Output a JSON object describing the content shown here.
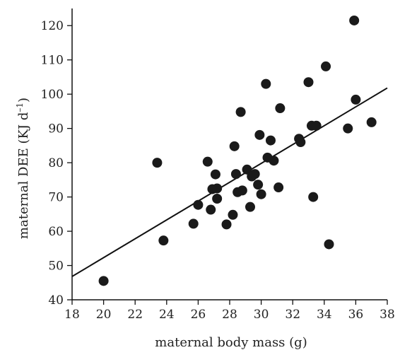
{
  "chart_data": {
    "type": "scatter",
    "xlabel": "maternal body mass (g)",
    "ylabel": "maternal DEE (KJ d",
    "ylabel_superscript": "–1",
    "ylabel_suffix": ")",
    "xlim": [
      18,
      38
    ],
    "ylim": [
      40,
      125
    ],
    "x_ticks": [
      18,
      20,
      22,
      24,
      26,
      28,
      30,
      32,
      34,
      36,
      38
    ],
    "y_ticks": [
      40,
      50,
      60,
      70,
      80,
      90,
      100,
      110,
      120
    ],
    "grid": false,
    "points": [
      [
        20.0,
        45.5
      ],
      [
        23.4,
        80.0
      ],
      [
        23.8,
        57.3
      ],
      [
        25.7,
        62.2
      ],
      [
        26.0,
        67.7
      ],
      [
        26.6,
        80.3
      ],
      [
        26.8,
        66.3
      ],
      [
        26.9,
        72.3
      ],
      [
        27.1,
        76.6
      ],
      [
        27.2,
        69.5
      ],
      [
        27.2,
        72.5
      ],
      [
        27.8,
        62.0
      ],
      [
        28.2,
        64.8
      ],
      [
        28.3,
        84.8
      ],
      [
        28.4,
        76.7
      ],
      [
        28.5,
        71.4
      ],
      [
        28.7,
        94.8
      ],
      [
        28.8,
        71.9
      ],
      [
        29.1,
        78.0
      ],
      [
        29.3,
        67.1
      ],
      [
        29.4,
        76.0
      ],
      [
        29.6,
        76.7
      ],
      [
        29.8,
        73.6
      ],
      [
        29.9,
        88.1
      ],
      [
        30.0,
        70.8
      ],
      [
        30.3,
        103.0
      ],
      [
        30.4,
        81.5
      ],
      [
        30.6,
        86.5
      ],
      [
        30.8,
        80.6
      ],
      [
        31.1,
        72.8
      ],
      [
        31.2,
        95.9
      ],
      [
        32.4,
        87.0
      ],
      [
        32.5,
        86.0
      ],
      [
        33.0,
        103.5
      ],
      [
        33.2,
        90.8
      ],
      [
        33.3,
        70.0
      ],
      [
        33.5,
        90.8
      ],
      [
        34.1,
        108.1
      ],
      [
        34.3,
        56.2
      ],
      [
        35.5,
        90.0
      ],
      [
        35.9,
        121.5
      ],
      [
        36.0,
        98.4
      ],
      [
        37.0,
        91.8
      ]
    ],
    "regression_line": {
      "x": [
        18,
        38
      ],
      "y": [
        46.8,
        101.8
      ]
    }
  }
}
